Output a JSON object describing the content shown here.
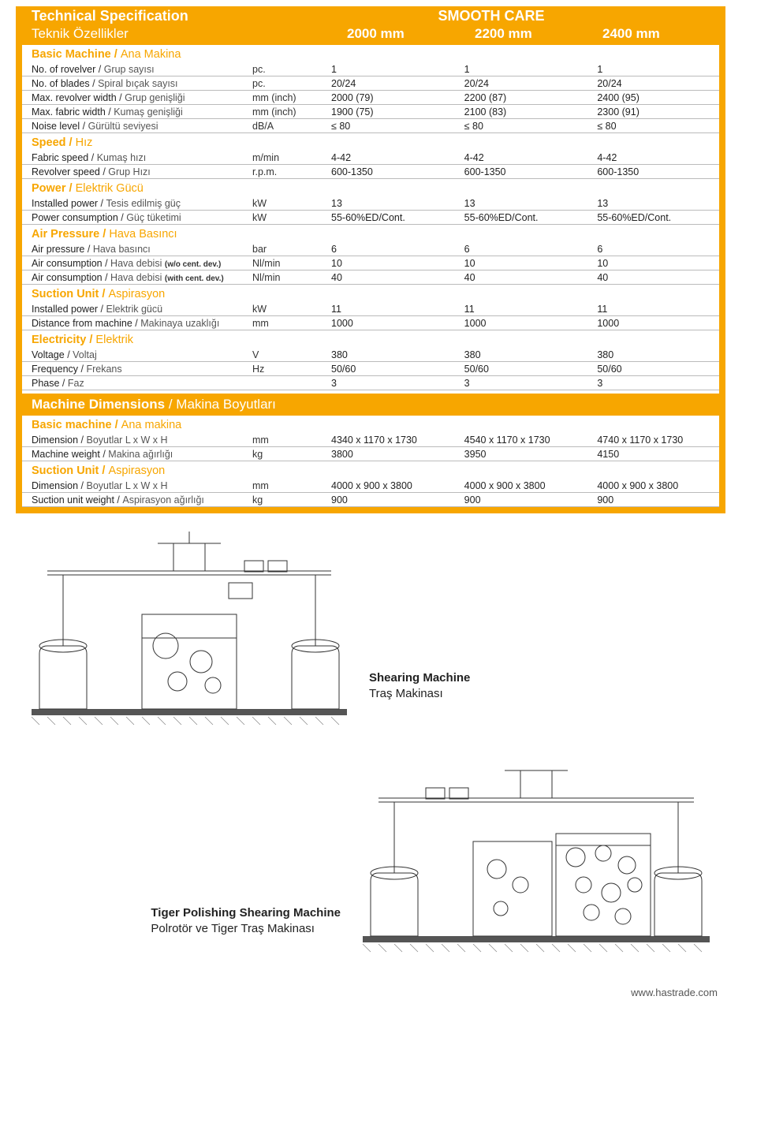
{
  "header": {
    "title_en": "Technical Specification",
    "title_tr": "Teknik Özellikler",
    "brand": "SMOOTH CARE",
    "columns": [
      "2000 mm",
      "2200 mm",
      "2400 mm"
    ]
  },
  "sections": [
    {
      "title_en": "Basic Machine",
      "title_tr": "Ana Makina",
      "rows": [
        {
          "label_en": "No. of rovelver",
          "label_tr": "Grup sayısı",
          "unit": "pc.",
          "v": [
            "1",
            "1",
            "1"
          ]
        },
        {
          "label_en": "No. of blades",
          "label_tr": "Spiral bıçak sayısı",
          "unit": "pc.",
          "v": [
            "20/24",
            "20/24",
            "20/24"
          ]
        },
        {
          "label_en": "Max. revolver width",
          "label_tr": "Grup genişliği",
          "unit": "mm (inch)",
          "v": [
            "2000 (79)",
            "2200 (87)",
            "2400 (95)"
          ]
        },
        {
          "label_en": "Max. fabric width",
          "label_tr": "Kumaş genişliği",
          "unit": "mm (inch)",
          "v": [
            "1900 (75)",
            "2100 (83)",
            "2300 (91)"
          ]
        },
        {
          "label_en": "Noise level",
          "label_tr": "Gürültü seviyesi",
          "unit": "dB/A",
          "v": [
            "≤ 80",
            "≤ 80",
            "≤ 80"
          ]
        }
      ]
    },
    {
      "title_en": "Speed",
      "title_tr": "Hız",
      "rows": [
        {
          "label_en": "Fabric speed",
          "label_tr": "Kumaş hızı",
          "unit": "m/min",
          "v": [
            "4-42",
            "4-42",
            "4-42"
          ]
        },
        {
          "label_en": "Revolver speed",
          "label_tr": "Grup Hızı",
          "unit": "r.p.m.",
          "v": [
            "600-1350",
            "600-1350",
            "600-1350"
          ]
        }
      ]
    },
    {
      "title_en": "Power",
      "title_tr": "Elektrik Gücü",
      "rows": [
        {
          "label_en": "Installed power",
          "label_tr": "Tesis edilmiş güç",
          "unit": "kW",
          "v": [
            "13",
            "13",
            "13"
          ]
        },
        {
          "label_en": "Power consumption",
          "label_tr": "Güç tüketimi",
          "unit": "kW",
          "v": [
            "55-60%ED/Cont.",
            "55-60%ED/Cont.",
            "55-60%ED/Cont."
          ]
        }
      ]
    },
    {
      "title_en": "Air Pressure",
      "title_tr": "Hava Basıncı",
      "rows": [
        {
          "label_en": "Air pressure",
          "label_tr": "Hava basıncı",
          "unit": "bar",
          "v": [
            "6",
            "6",
            "6"
          ]
        },
        {
          "label_en": "Air consumption",
          "label_tr": "Hava debisi",
          "small": "(w/o cent. dev.)",
          "unit": "Nl/min",
          "v": [
            "10",
            "10",
            "10"
          ]
        },
        {
          "label_en": "Air consumption",
          "label_tr": "Hava debisi",
          "small": "(with cent. dev.)",
          "unit": "Nl/min",
          "v": [
            "40",
            "40",
            "40"
          ]
        }
      ]
    },
    {
      "title_en": "Suction Unit",
      "title_tr": "Aspirasyon",
      "rows": [
        {
          "label_en": "Installed power",
          "label_tr": "Elektrik gücü",
          "unit": "kW",
          "v": [
            "11",
            "11",
            "11"
          ]
        },
        {
          "label_en": "Distance from machine",
          "label_tr": "Makinaya uzaklığı",
          "unit": "mm",
          "v": [
            "1000",
            "1000",
            "1000"
          ]
        }
      ]
    },
    {
      "title_en": "Electricity",
      "title_tr": "Elektrik",
      "rows": [
        {
          "label_en": "Voltage",
          "label_tr": "Voltaj",
          "unit": "V",
          "v": [
            "380",
            "380",
            "380"
          ]
        },
        {
          "label_en": "Frequency",
          "label_tr": "Frekans",
          "unit": "Hz",
          "v": [
            "50/60",
            "50/60",
            "50/60"
          ]
        },
        {
          "label_en": "Phase",
          "label_tr": "Faz",
          "unit": "",
          "v": [
            "3",
            "3",
            "3"
          ]
        }
      ]
    }
  ],
  "dimensions_bar": {
    "en": "Machine Dimensions",
    "tr": "Makina Boyutları"
  },
  "dim_sections": [
    {
      "title_en": "Basic machine",
      "title_tr": "Ana makina",
      "rows": [
        {
          "label_en": "Dimension",
          "label_tr": "Boyutlar  L x W x H",
          "unit": "mm",
          "v": [
            "4340 x 1170 x 1730",
            "4540 x 1170 x 1730",
            "4740 x 1170 x 1730"
          ]
        },
        {
          "label_en": "Machine weight",
          "label_tr": "Makina ağırlığı",
          "unit": "kg",
          "v": [
            "3800",
            "3950",
            "4150"
          ]
        }
      ]
    },
    {
      "title_en": "Suction Unit",
      "title_tr": "Aspirasyon",
      "rows": [
        {
          "label_en": "Dimension",
          "label_tr": "Boyutlar   L x W x H",
          "unit": "mm",
          "v": [
            "4000 x 900 x 3800",
            "4000 x 900 x 3800",
            "4000 x 900 x 3800"
          ]
        },
        {
          "label_en": "Suction unit weight",
          "label_tr": "Aspirasyon ağırlığı",
          "unit": "kg",
          "v": [
            "900",
            "900",
            "900"
          ]
        }
      ]
    }
  ],
  "captions": {
    "shearing_en": "Shearing Machine",
    "shearing_tr": "Traş Makinası",
    "tiger_en": "Tiger Polishing Shearing Machine",
    "tiger_tr": "Polrotör ve Tiger Traş Makinası"
  },
  "footer": "www.hastrade.com",
  "colors": {
    "orange": "#f7a600",
    "text": "#333",
    "rule": "#bbb"
  }
}
